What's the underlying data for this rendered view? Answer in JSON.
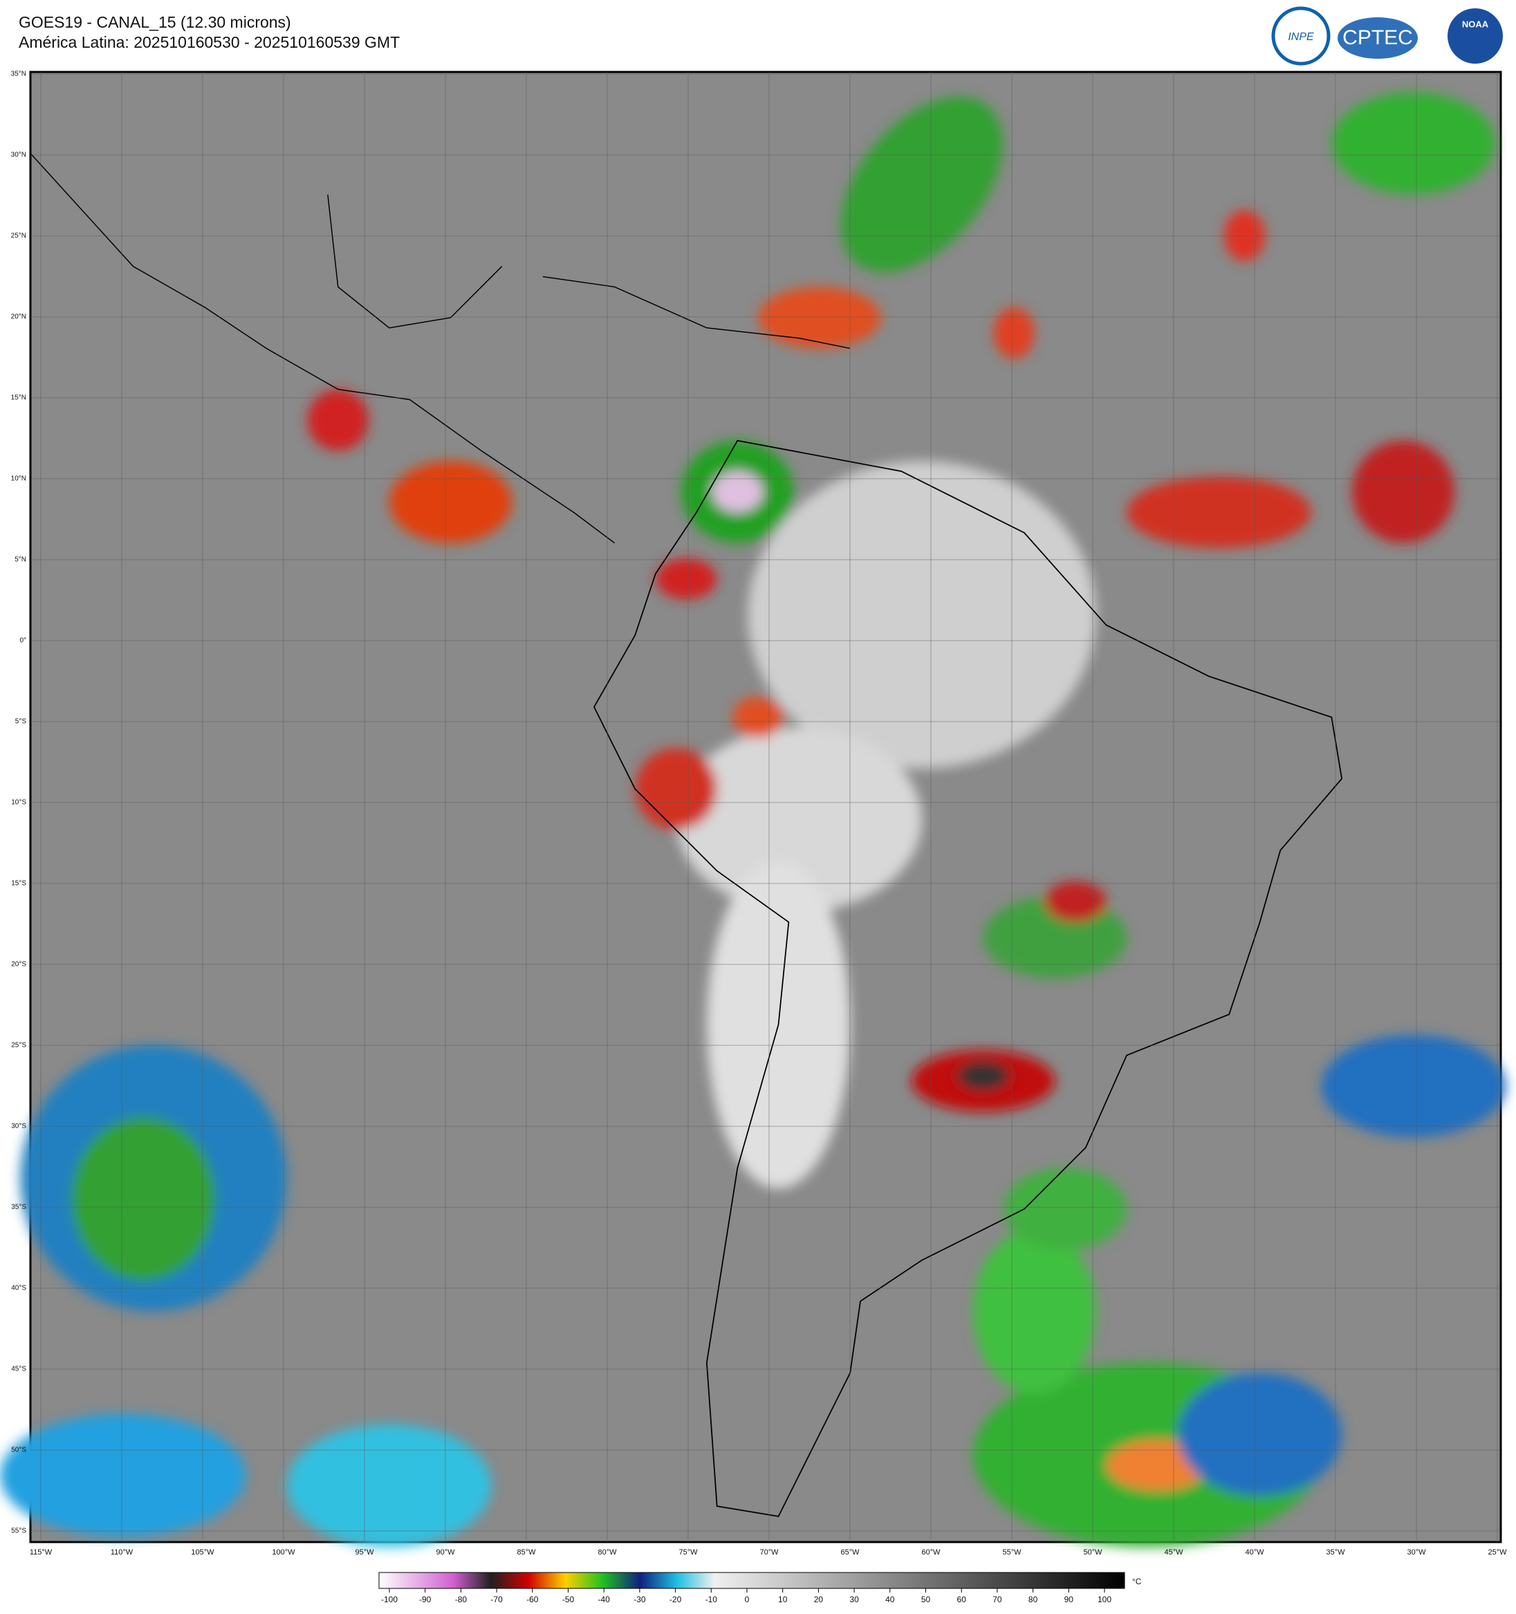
{
  "header": {
    "title": "GOES19 - CANAL_15 (12.30 microns)",
    "subtitle": "América Latina: 202510160530 - 202510160539 GMT"
  },
  "logos": [
    "INPE",
    "CPTEC",
    "NOAA"
  ],
  "map": {
    "lat_labels": [
      "35°N",
      "30°N",
      "25°N",
      "20°N",
      "15°N",
      "10°N",
      "5°N",
      "0°",
      "5°S",
      "10°S",
      "15°S",
      "20°S",
      "25°S",
      "30°S",
      "35°S",
      "40°S",
      "45°S",
      "50°S",
      "55°S"
    ],
    "lon_labels": [
      "115°W",
      "110°W",
      "105°W",
      "100°W",
      "95°W",
      "90°W",
      "85°W",
      "80°W",
      "75°W",
      "70°W",
      "65°W",
      "60°W",
      "55°W",
      "50°W",
      "45°W",
      "40°W",
      "35°W",
      "30°W",
      "25°W"
    ]
  },
  "colorbar": {
    "ticks": [
      -100,
      -90,
      -80,
      -70,
      -60,
      -50,
      -40,
      -30,
      -20,
      -10,
      0,
      10,
      20,
      30,
      40,
      50,
      60,
      70,
      80,
      90,
      100
    ],
    "unit": "°C"
  }
}
